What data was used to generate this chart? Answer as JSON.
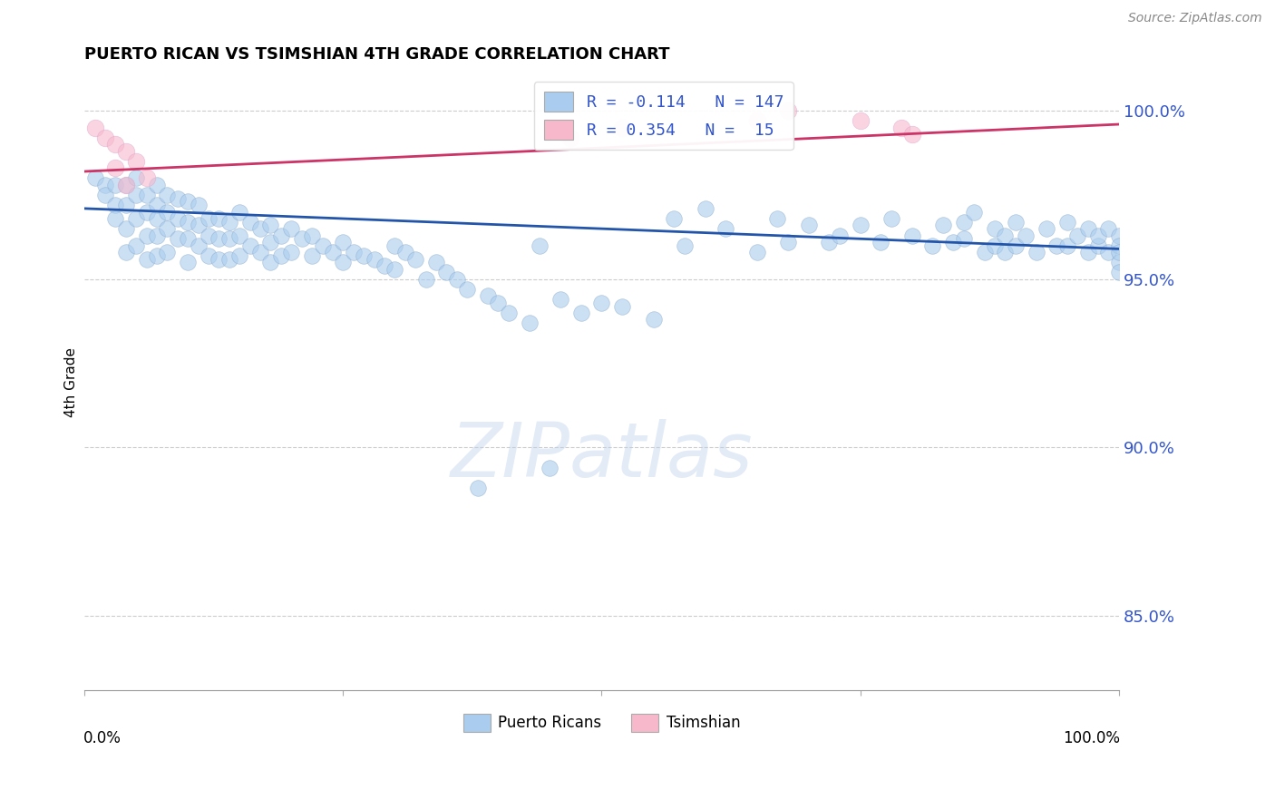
{
  "title": "PUERTO RICAN VS TSIMSHIAN 4TH GRADE CORRELATION CHART",
  "source": "Source: ZipAtlas.com",
  "ylabel": "4th Grade",
  "x_min": 0.0,
  "x_max": 1.0,
  "y_min": 0.828,
  "y_max": 1.011,
  "yticks": [
    0.85,
    0.9,
    0.95,
    1.0
  ],
  "ytick_labels": [
    "85.0%",
    "90.0%",
    "95.0%",
    "100.0%"
  ],
  "blue_R": -0.114,
  "blue_N": 147,
  "pink_R": 0.354,
  "pink_N": 15,
  "blue_color": "#aaccee",
  "blue_edge_color": "#88aacc",
  "blue_line_color": "#2255aa",
  "pink_color": "#f8b8cc",
  "pink_edge_color": "#ddaacc",
  "pink_line_color": "#cc3366",
  "legend_label_blue": "Puerto Ricans",
  "legend_label_pink": "Tsimshian",
  "blue_trend": [
    0.0,
    0.971,
    1.0,
    0.959
  ],
  "pink_trend": [
    0.0,
    0.982,
    1.0,
    0.996
  ],
  "blue_scatter_x": [
    0.01,
    0.02,
    0.02,
    0.03,
    0.03,
    0.03,
    0.04,
    0.04,
    0.04,
    0.04,
    0.05,
    0.05,
    0.05,
    0.05,
    0.06,
    0.06,
    0.06,
    0.06,
    0.07,
    0.07,
    0.07,
    0.07,
    0.07,
    0.08,
    0.08,
    0.08,
    0.08,
    0.09,
    0.09,
    0.09,
    0.1,
    0.1,
    0.1,
    0.1,
    0.11,
    0.11,
    0.11,
    0.12,
    0.12,
    0.12,
    0.13,
    0.13,
    0.13,
    0.14,
    0.14,
    0.14,
    0.15,
    0.15,
    0.15,
    0.16,
    0.16,
    0.17,
    0.17,
    0.18,
    0.18,
    0.18,
    0.19,
    0.19,
    0.2,
    0.2,
    0.21,
    0.22,
    0.22,
    0.23,
    0.24,
    0.25,
    0.25,
    0.26,
    0.27,
    0.28,
    0.29,
    0.3,
    0.3,
    0.31,
    0.32,
    0.33,
    0.34,
    0.35,
    0.36,
    0.37,
    0.38,
    0.39,
    0.4,
    0.41,
    0.43,
    0.44,
    0.45,
    0.46,
    0.48,
    0.5,
    0.52,
    0.55,
    0.57,
    0.58,
    0.6,
    0.62,
    0.65,
    0.67,
    0.68,
    0.7,
    0.72,
    0.73,
    0.75,
    0.77,
    0.78,
    0.8,
    0.82,
    0.83,
    0.84,
    0.85,
    0.85,
    0.86,
    0.87,
    0.88,
    0.88,
    0.89,
    0.89,
    0.9,
    0.9,
    0.91,
    0.92,
    0.93,
    0.94,
    0.95,
    0.95,
    0.96,
    0.97,
    0.97,
    0.98,
    0.98,
    0.99,
    0.99,
    1.0,
    1.0,
    1.0,
    1.0,
    1.0
  ],
  "blue_scatter_y": [
    0.98,
    0.978,
    0.975,
    0.978,
    0.972,
    0.968,
    0.978,
    0.972,
    0.965,
    0.958,
    0.98,
    0.975,
    0.968,
    0.96,
    0.975,
    0.97,
    0.963,
    0.956,
    0.978,
    0.972,
    0.968,
    0.963,
    0.957,
    0.975,
    0.97,
    0.965,
    0.958,
    0.974,
    0.968,
    0.962,
    0.973,
    0.967,
    0.962,
    0.955,
    0.972,
    0.966,
    0.96,
    0.968,
    0.963,
    0.957,
    0.968,
    0.962,
    0.956,
    0.967,
    0.962,
    0.956,
    0.97,
    0.963,
    0.957,
    0.967,
    0.96,
    0.965,
    0.958,
    0.966,
    0.961,
    0.955,
    0.963,
    0.957,
    0.965,
    0.958,
    0.962,
    0.963,
    0.957,
    0.96,
    0.958,
    0.961,
    0.955,
    0.958,
    0.957,
    0.956,
    0.954,
    0.96,
    0.953,
    0.958,
    0.956,
    0.95,
    0.955,
    0.952,
    0.95,
    0.947,
    0.888,
    0.945,
    0.943,
    0.94,
    0.937,
    0.96,
    0.894,
    0.944,
    0.94,
    0.943,
    0.942,
    0.938,
    0.968,
    0.96,
    0.971,
    0.965,
    0.958,
    0.968,
    0.961,
    0.966,
    0.961,
    0.963,
    0.966,
    0.961,
    0.968,
    0.963,
    0.96,
    0.966,
    0.961,
    0.967,
    0.962,
    0.97,
    0.958,
    0.965,
    0.96,
    0.963,
    0.958,
    0.967,
    0.96,
    0.963,
    0.958,
    0.965,
    0.96,
    0.967,
    0.96,
    0.963,
    0.958,
    0.965,
    0.96,
    0.963,
    0.958,
    0.965,
    0.963,
    0.96,
    0.955,
    0.958,
    0.952
  ],
  "pink_scatter_x": [
    0.01,
    0.02,
    0.03,
    0.03,
    0.04,
    0.04,
    0.05,
    0.06,
    0.47,
    0.52,
    0.65,
    0.68,
    0.75,
    0.79,
    0.8
  ],
  "pink_scatter_y": [
    0.995,
    0.992,
    0.99,
    0.983,
    0.988,
    0.978,
    0.985,
    0.98,
    0.992,
    0.995,
    0.997,
    1.0,
    0.997,
    0.995,
    0.993
  ]
}
